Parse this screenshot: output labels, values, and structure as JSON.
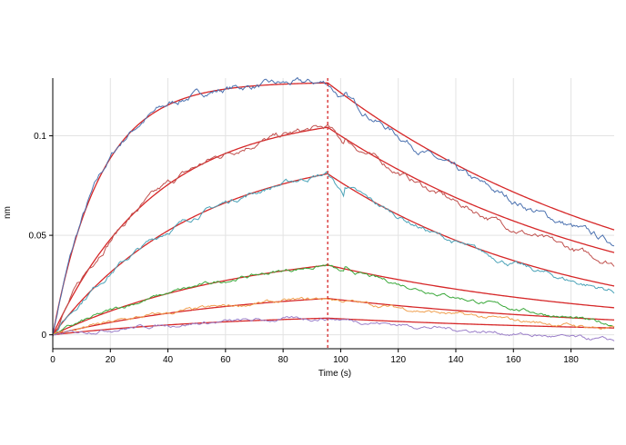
{
  "chart_data": {
    "type": "line",
    "title": "",
    "xlabel": "Time (s)",
    "ylabel": "nm",
    "xlim": [
      0,
      195
    ],
    "ylim": [
      -0.007,
      0.129
    ],
    "x_ticks": [
      0,
      20,
      40,
      60,
      80,
      100,
      120,
      140,
      160,
      180
    ],
    "y_ticks": [
      0,
      0.05,
      0.1
    ],
    "x_tick_labels": [
      "0",
      "20",
      "40",
      "60",
      "80",
      "100",
      "120",
      "140",
      "160",
      "180"
    ],
    "y_tick_labels": [
      "0",
      "0.05",
      "0.1"
    ],
    "grid": true,
    "legend": "none",
    "fit_color": "#d62728",
    "marker_line": {
      "x": 95.5,
      "color": "#d62728",
      "style": "dashed"
    },
    "association_end": 95.5,
    "x_end": 195,
    "noise_seed": 7,
    "series": [
      {
        "color": "#4c72b0",
        "rmax": 0.127,
        "kobs": 0.06,
        "kd": 0.0088,
        "decay_end": 0.046
      },
      {
        "color": "#c0504d",
        "rmax": 0.112,
        "kobs": 0.028,
        "kd": 0.0093,
        "decay_end": 0.036
      },
      {
        "color": "#4ba3b8",
        "rmax": 0.095,
        "kobs": 0.02,
        "kd": 0.012,
        "decay_end": 0.022
      },
      {
        "color": "#3aa83a",
        "rmax": 0.046,
        "kobs": 0.015,
        "kd": 0.0095,
        "decay_end": 0.005
      },
      {
        "color": "#f0a050",
        "rmax": 0.024,
        "kobs": 0.015,
        "kd": 0.009,
        "decay_end": 0.003
      },
      {
        "color": "#9b7fc9",
        "rmax": 0.011,
        "kobs": 0.015,
        "kd": 0.009,
        "decay_end": -0.003
      }
    ]
  }
}
